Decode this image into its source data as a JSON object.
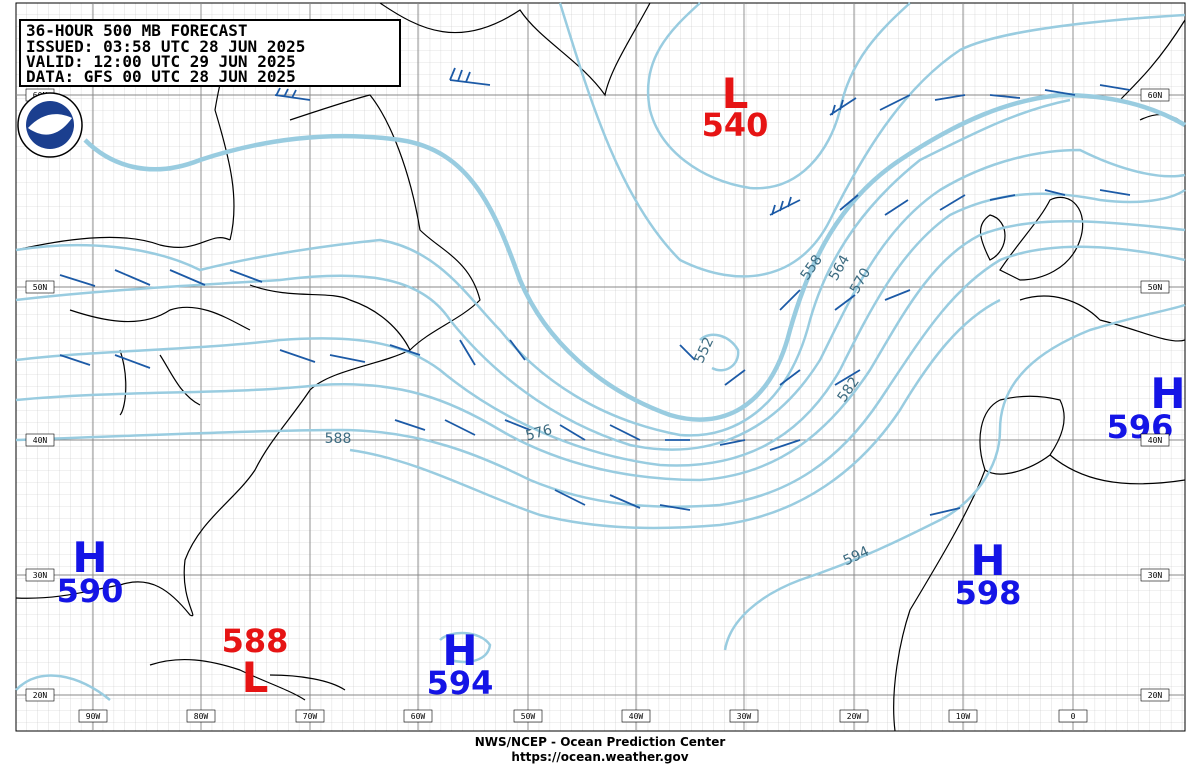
{
  "header": {
    "lines": [
      "36-HOUR 500 MB FORECAST",
      "ISSUED: 03:58 UTC 28 JUN 2025",
      "VALID:  12:00 UTC 29 JUN 2025",
      "DATA:   GFS 00 UTC 28 JUN 2025"
    ]
  },
  "latitude_labels": [
    "60N",
    "50N",
    "40N",
    "30N",
    "20N"
  ],
  "longitude_labels": [
    "90W",
    "80W",
    "70W",
    "60W",
    "50W",
    "40W",
    "30W",
    "20W",
    "10W",
    "0"
  ],
  "centers": [
    {
      "symbol": "H",
      "value": "590"
    },
    {
      "symbol": "L",
      "value": "588"
    },
    {
      "symbol": "H",
      "value": "594"
    },
    {
      "symbol": "L",
      "value": "540"
    },
    {
      "symbol": "H",
      "value": "598"
    },
    {
      "symbol": "H",
      "value": "596"
    }
  ],
  "contour_labels": [
    "552",
    "558",
    "564",
    "570",
    "576",
    "582",
    "588",
    "594"
  ],
  "footer": {
    "line1": "NWS/NCEP - Ocean Prediction Center",
    "line2": "https://ocean.weather.gov"
  }
}
